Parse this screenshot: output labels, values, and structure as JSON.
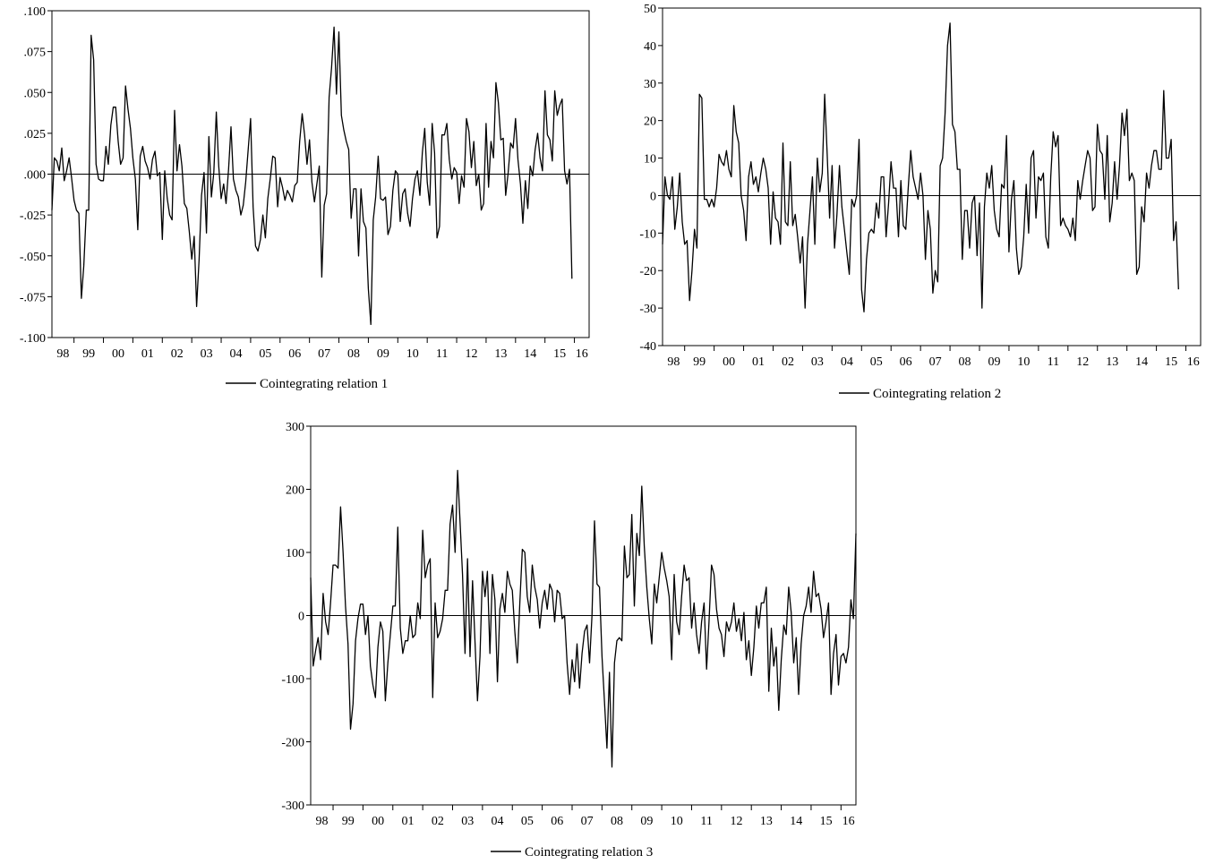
{
  "chart_data": [
    {
      "type": "line",
      "title": "",
      "legend": "Cointegrating relation 1",
      "legend_position": "bottom",
      "xlabel": "",
      "ylabel": "",
      "x_ticks": [
        "98",
        "99",
        "00",
        "01",
        "02",
        "03",
        "04",
        "05",
        "06",
        "07",
        "08",
        "09",
        "10",
        "11",
        "12",
        "13",
        "14",
        "15",
        "16"
      ],
      "y_ticks": [
        ".100",
        ".075",
        ".050",
        ".025",
        ".000",
        "-.025",
        "-.050",
        "-.075",
        "-.100"
      ],
      "ylim": [
        -0.1,
        0.1
      ],
      "xlim": [
        1998.25,
        2016.5
      ],
      "zero_line": true,
      "series": [
        {
          "name": "Cointegrating relation 1",
          "x0": 1998.25,
          "step": 0.0833333,
          "values": [
            -0.022,
            0.01,
            0.008,
            0.002,
            0.016,
            -0.004,
            0.002,
            0.01,
            -0.002,
            -0.016,
            -0.022,
            -0.024,
            -0.076,
            -0.056,
            -0.022,
            -0.022,
            0.085,
            0.07,
            0.006,
            -0.003,
            -0.004,
            -0.004,
            0.017,
            0.006,
            0.03,
            0.041,
            0.041,
            0.02,
            0.006,
            0.01,
            0.054,
            0.04,
            0.028,
            0.01,
            -0.003,
            -0.034,
            0.011,
            0.017,
            0.008,
            0.004,
            -0.003,
            0.009,
            0.014,
            -0.001,
            0.001,
            -0.04,
            0.002,
            -0.015,
            -0.025,
            -0.028,
            0.039,
            0.002,
            0.018,
            0.005,
            -0.018,
            -0.021,
            -0.035,
            -0.052,
            -0.038,
            -0.081,
            -0.052,
            -0.013,
            0.001,
            -0.036,
            0.023,
            -0.014,
            0.001,
            0.038,
            0.005,
            -0.015,
            -0.006,
            -0.018,
            0.003,
            0.029,
            -0.003,
            -0.01,
            -0.014,
            -0.025,
            -0.019,
            -0.005,
            0.015,
            0.034,
            -0.02,
            -0.044,
            -0.047,
            -0.04,
            -0.025,
            -0.039,
            -0.015,
            -0.003,
            0.011,
            0.01,
            -0.02,
            -0.002,
            -0.008,
            -0.016,
            -0.01,
            -0.013,
            -0.017,
            -0.007,
            -0.005,
            0.02,
            0.037,
            0.024,
            0.006,
            0.021,
            -0.005,
            -0.017,
            -0.006,
            0.005,
            -0.063,
            -0.019,
            -0.012,
            0.047,
            0.065,
            0.09,
            0.049,
            0.087,
            0.036,
            0.027,
            0.02,
            0.015,
            -0.027,
            -0.009,
            -0.009,
            -0.05,
            -0.009,
            -0.029,
            -0.033,
            -0.07,
            -0.092,
            -0.028,
            -0.014,
            0.011,
            -0.015,
            -0.016,
            -0.014,
            -0.037,
            -0.032,
            -0.01,
            0.002,
            0.0,
            -0.029,
            -0.012,
            -0.009,
            -0.024,
            -0.032,
            -0.015,
            -0.003,
            0.002,
            -0.013,
            0.013,
            0.028,
            -0.005,
            -0.019,
            0.031,
            0.013,
            -0.039,
            -0.032,
            0.024,
            0.024,
            0.031,
            0.009,
            -0.003,
            0.004,
            0.001,
            -0.018,
            -0.001,
            -0.008,
            0.034,
            0.026,
            0.004,
            0.02,
            -0.007,
            0.0,
            -0.022,
            -0.018,
            0.031,
            -0.008,
            0.02,
            0.01,
            0.056,
            0.044,
            0.021,
            0.022,
            -0.013,
            0.001,
            0.019,
            0.016,
            0.034,
            0.009,
            -0.006,
            -0.03,
            -0.004,
            -0.021,
            0.005,
            -0.001,
            0.015,
            0.025,
            0.01,
            0.002,
            0.051,
            0.024,
            0.021,
            0.008,
            0.051,
            0.036,
            0.042,
            0.046,
            0.002,
            -0.006,
            0.003,
            -0.064
          ]
        }
      ]
    },
    {
      "type": "line",
      "title": "",
      "legend": "Cointegrating relation 2",
      "legend_position": "bottom",
      "xlabel": "",
      "ylabel": "",
      "x_ticks": [
        "98",
        "99",
        "00",
        "01",
        "02",
        "03",
        "04",
        "05",
        "06",
        "07",
        "08",
        "09",
        "10",
        "11",
        "12",
        "13",
        "14",
        "15",
        "16"
      ],
      "y_ticks": [
        "50",
        "40",
        "30",
        "20",
        "10",
        "0",
        "-10",
        "-20",
        "-30",
        "-40"
      ],
      "ylim": [
        -40,
        50
      ],
      "xlim": [
        1998.25,
        2016.5
      ],
      "zero_line": true,
      "series": [
        {
          "name": "Cointegrating relation 2",
          "x0": 1998.25,
          "step": 0.0833333,
          "values": [
            -13,
            5,
            0,
            -1,
            5,
            -9,
            -3,
            6,
            -7,
            -13,
            -12,
            -28,
            -20,
            -9,
            -14,
            27,
            26,
            -1,
            -1,
            -3,
            -1,
            -3,
            2,
            11,
            9,
            8,
            12,
            7,
            5,
            24,
            17,
            14,
            0,
            -4,
            -12,
            5,
            9,
            3,
            5,
            1,
            6,
            10,
            7,
            2,
            -13,
            1,
            -6,
            -7,
            -13,
            14,
            -7,
            -8,
            9,
            -8,
            -5,
            -11,
            -18,
            -11,
            -30,
            -13,
            -4,
            5,
            -13,
            10,
            1,
            6,
            27,
            11,
            -6,
            8,
            -14,
            -5,
            8,
            -3,
            -9,
            -15,
            -21,
            -1,
            -3,
            0,
            15,
            -25,
            -31,
            -17,
            -10,
            -9,
            -10,
            -2,
            -6,
            5,
            5,
            -11,
            -2,
            9,
            2,
            2,
            -11,
            4,
            -8,
            -9,
            2,
            12,
            5,
            2,
            -1,
            6,
            0,
            -17,
            -4,
            -9,
            -26,
            -20,
            -23,
            8,
            10,
            22,
            40,
            46,
            19,
            17,
            7,
            7,
            -17,
            -4,
            -4,
            -14,
            -2,
            0,
            -16,
            -2,
            -30,
            -3,
            6,
            2,
            8,
            -4,
            -9,
            -11,
            3,
            2,
            16,
            -15,
            -1,
            4,
            -14,
            -21,
            -19,
            -11,
            3,
            -10,
            10,
            12,
            -6,
            5,
            4,
            6,
            -11,
            -14,
            5,
            17,
            13,
            16,
            -8,
            -6,
            -8,
            -9,
            -11,
            -6,
            -12,
            4,
            -1,
            4,
            8,
            12,
            10,
            -4,
            -3,
            19,
            12,
            11,
            -1,
            16,
            -7,
            -2,
            9,
            -1,
            8,
            22,
            16,
            23,
            4,
            6,
            4,
            -21,
            -19,
            -3,
            -7,
            6,
            2,
            8,
            12,
            12,
            7,
            7,
            28,
            10,
            10,
            15,
            -12,
            -7,
            -25
          ]
        }
      ]
    },
    {
      "type": "line",
      "title": "",
      "legend": "Cointegrating relation 3",
      "legend_position": "bottom",
      "xlabel": "",
      "ylabel": "",
      "x_ticks": [
        "98",
        "99",
        "00",
        "01",
        "02",
        "03",
        "04",
        "05",
        "06",
        "07",
        "08",
        "09",
        "10",
        "11",
        "12",
        "13",
        "14",
        "15",
        "16"
      ],
      "y_ticks": [
        "300",
        "200",
        "100",
        "0",
        "-100",
        "-200",
        "-300"
      ],
      "ylim": [
        -300,
        300
      ],
      "xlim": [
        1998.25,
        2016.5
      ],
      "zero_line": true,
      "series": [
        {
          "name": "Cointegrating relation 3",
          "x0": 1998.25,
          "step": 0.0833333,
          "values": [
            60,
            -80,
            -55,
            -35,
            -70,
            35,
            -10,
            -30,
            20,
            80,
            80,
            75,
            172,
            100,
            15,
            -45,
            -180,
            -140,
            -40,
            -5,
            18,
            18,
            -30,
            0,
            -80,
            -110,
            -130,
            -50,
            -10,
            -25,
            -135,
            -75,
            -30,
            15,
            15,
            140,
            -20,
            -60,
            -40,
            -40,
            0,
            -35,
            -30,
            20,
            -5,
            135,
            60,
            80,
            90,
            -130,
            20,
            -35,
            -25,
            -5,
            40,
            40,
            145,
            175,
            100,
            230,
            150,
            65,
            -60,
            90,
            -65,
            55,
            -40,
            -135,
            -65,
            70,
            30,
            70,
            -60,
            65,
            25,
            -105,
            10,
            35,
            5,
            70,
            50,
            40,
            -25,
            -75,
            20,
            105,
            100,
            30,
            5,
            80,
            45,
            25,
            -20,
            20,
            40,
            10,
            50,
            40,
            -10,
            40,
            35,
            -5,
            0,
            -75,
            -125,
            -70,
            -105,
            -45,
            -115,
            -60,
            -25,
            -15,
            -75,
            0,
            150,
            50,
            45,
            -65,
            -135,
            -210,
            -90,
            -240,
            -75,
            -40,
            -35,
            -40,
            110,
            60,
            65,
            160,
            15,
            130,
            95,
            205,
            110,
            45,
            -5,
            -45,
            50,
            20,
            60,
            100,
            75,
            55,
            30,
            -70,
            65,
            -10,
            -30,
            30,
            80,
            55,
            60,
            -20,
            20,
            -30,
            -60,
            -10,
            20,
            -85,
            -10,
            80,
            65,
            10,
            -20,
            -30,
            -65,
            -10,
            -25,
            -10,
            20,
            -25,
            -5,
            -40,
            5,
            -70,
            -40,
            -95,
            -50,
            15,
            -20,
            20,
            20,
            45,
            -120,
            -20,
            -80,
            -50,
            -150,
            -70,
            -15,
            -30,
            45,
            5,
            -75,
            -35,
            -125,
            -45,
            0,
            15,
            45,
            5,
            70,
            30,
            35,
            10,
            -35,
            -10,
            20,
            -125,
            -60,
            -30,
            -110,
            -65,
            -60,
            -75,
            -50,
            25,
            -5,
            130
          ]
        }
      ]
    }
  ]
}
